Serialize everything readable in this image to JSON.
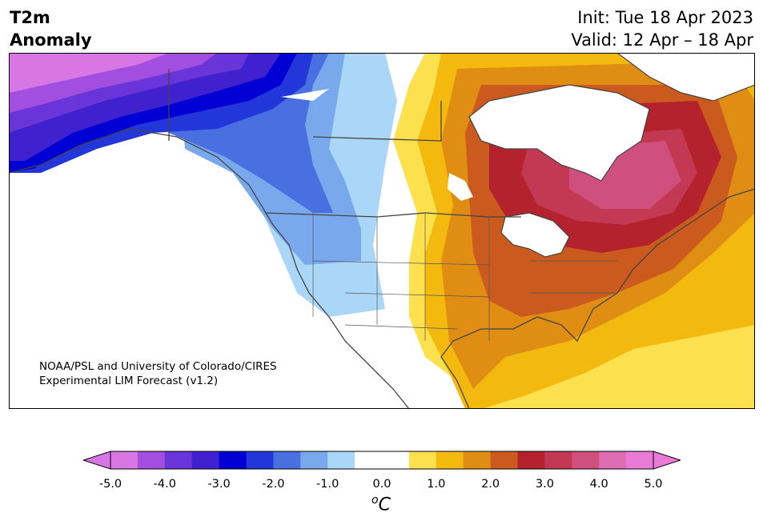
{
  "header": {
    "variable_line1": "T2m",
    "variable_line2": "Anomaly",
    "init": "Init: Tue 18 Apr 2023",
    "valid": "Valid: 12 Apr – 18 Apr"
  },
  "credit": {
    "line1": "NOAA/PSL and University of Colorado/CIRES",
    "line2": "Experimental LIM Forecast (v1.2)"
  },
  "colorbar": {
    "unit_super": "o",
    "unit_main": "C",
    "ticks": [
      "-5.0",
      "-4.0",
      "-3.0",
      "-2.0",
      "-1.0",
      "0.0",
      "1.0",
      "2.0",
      "3.0",
      "4.0",
      "5.0"
    ],
    "colors": [
      "#d876e4",
      "#a24fe0",
      "#6935d8",
      "#3f21cf",
      "#0000d4",
      "#2236d9",
      "#4a6fe0",
      "#79a9ec",
      "#aad7f7",
      "#ffffff",
      "#ffffff",
      "#fde04d",
      "#f3b90f",
      "#e08d14",
      "#cb5a1e",
      "#b3222d",
      "#c33852",
      "#cf507c",
      "#df6db2",
      "#e97ad6"
    ],
    "extend_low": "#d876e4",
    "extend_high": "#e97ad6"
  },
  "map": {
    "region": "North America",
    "lakes_color": "#ffffff",
    "coast_color": "#444444"
  }
}
